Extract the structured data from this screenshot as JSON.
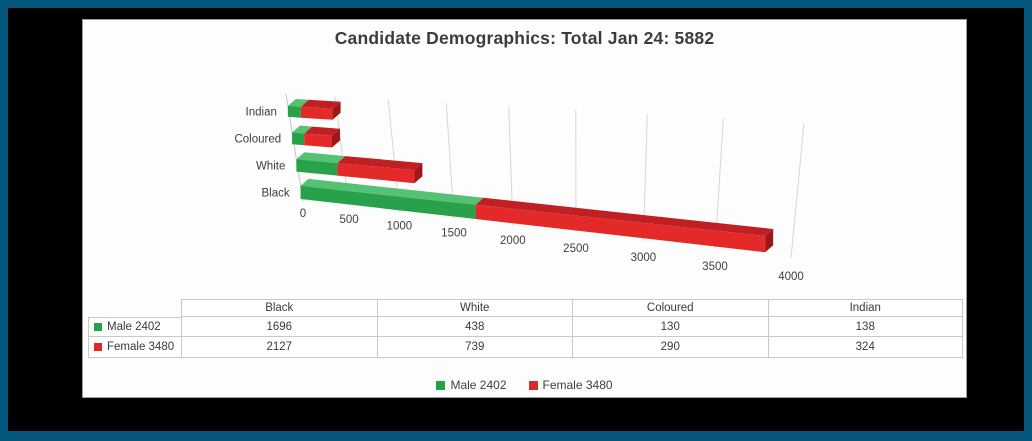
{
  "frame": {
    "border_color": "#05567c",
    "background": "#000000"
  },
  "chart_data": {
    "type": "bar",
    "variant": "3d-horizontal-stacked",
    "title": "Candidate Demographics: Total Jan 24: 5882",
    "categories": [
      "Black",
      "White",
      "Coloured",
      "Indian"
    ],
    "series": [
      {
        "name": "Male 2402",
        "color": "#27a147",
        "values": [
          1696,
          438,
          130,
          138
        ]
      },
      {
        "name": "Female 3480",
        "color": "#dd2a27",
        "values": [
          2127,
          739,
          290,
          324
        ]
      }
    ],
    "total": 5882,
    "xlabel": "",
    "ylabel": "",
    "xlim": [
      0,
      4000
    ],
    "x_ticks": [
      0,
      500,
      1000,
      1500,
      2000,
      2500,
      3000,
      3500,
      4000
    ],
    "grid": true,
    "legend_position": "bottom",
    "data_table_shown": true,
    "series_colors_3d": {
      "male": {
        "front": "#28a14a",
        "top": "#55c173",
        "cap": "#5ecb7f"
      },
      "female": {
        "front": "#e32a28",
        "top": "#c02023",
        "cap": "#9d1719"
      }
    }
  }
}
